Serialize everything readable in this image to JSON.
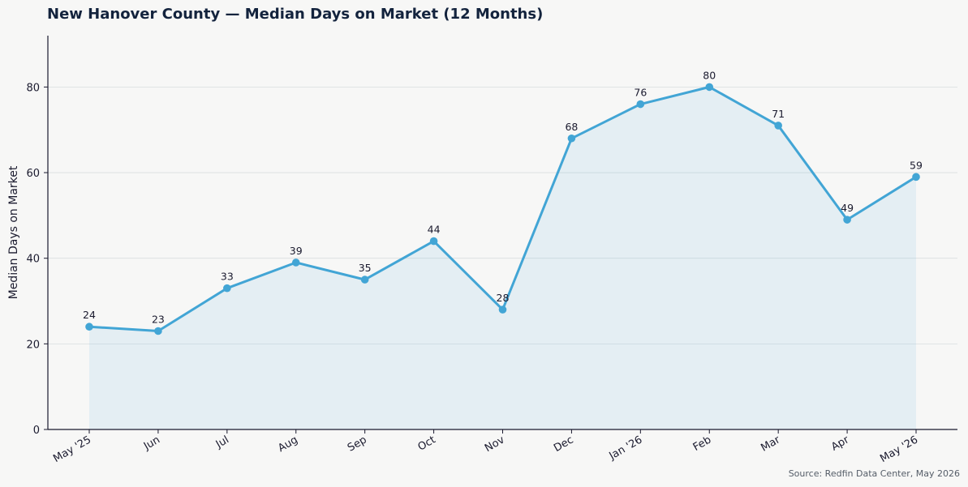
{
  "chart_data": {
    "type": "area",
    "title": "New Hanover County — Median Days on Market (12 Months)",
    "xlabel": "",
    "ylabel": "Median Days on Market",
    "categories": [
      "May '25",
      "Jun",
      "Jul",
      "Aug",
      "Sep",
      "Oct",
      "Nov",
      "Dec",
      "Jan '26",
      "Feb",
      "Mar",
      "Apr",
      "May '26"
    ],
    "values": [
      24,
      23,
      33,
      39,
      35,
      44,
      28,
      68,
      76,
      80,
      71,
      49,
      59
    ],
    "ylim": [
      0,
      92
    ],
    "yticks": [
      0,
      20,
      40,
      60,
      80
    ],
    "grid": true,
    "data_labels": true,
    "colors": {
      "line": "#42a5d5",
      "fill": "#42a5d5",
      "grid": "#d9dedf",
      "axis": "#1a1a2e",
      "background": "#f7f7f6"
    }
  },
  "source": "Source: Redfin Data Center, May 2026"
}
